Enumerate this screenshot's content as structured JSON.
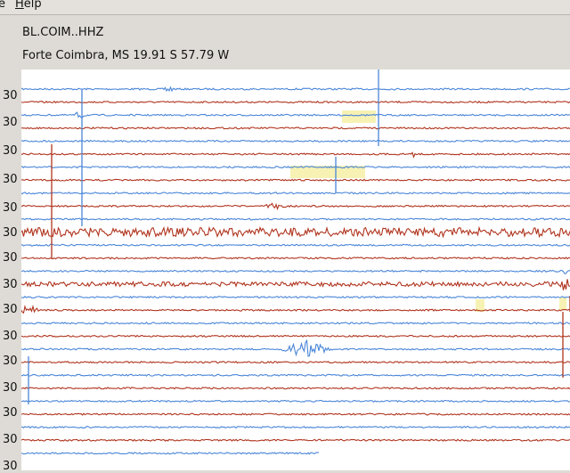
{
  "menubar": {
    "partial_item_label": "e",
    "help_label": "Help",
    "help_underline": "H",
    "help_rest": "elp"
  },
  "header": {
    "station_code": "BL.COIM..HHZ",
    "location": "Forte Coimbra, MS  19.91 S 57.79 W"
  },
  "time_labels": [
    "30",
    "30",
    "30",
    "30",
    "30",
    "30",
    "30",
    "30",
    "30",
    "30",
    "30",
    "30",
    "30",
    "30",
    "30"
  ],
  "colors": {
    "trace_blue": "#4a86d8",
    "trace_red": "#b0341e",
    "highlight": "#f7f2b4",
    "plot_background": "#ffffff"
  }
}
